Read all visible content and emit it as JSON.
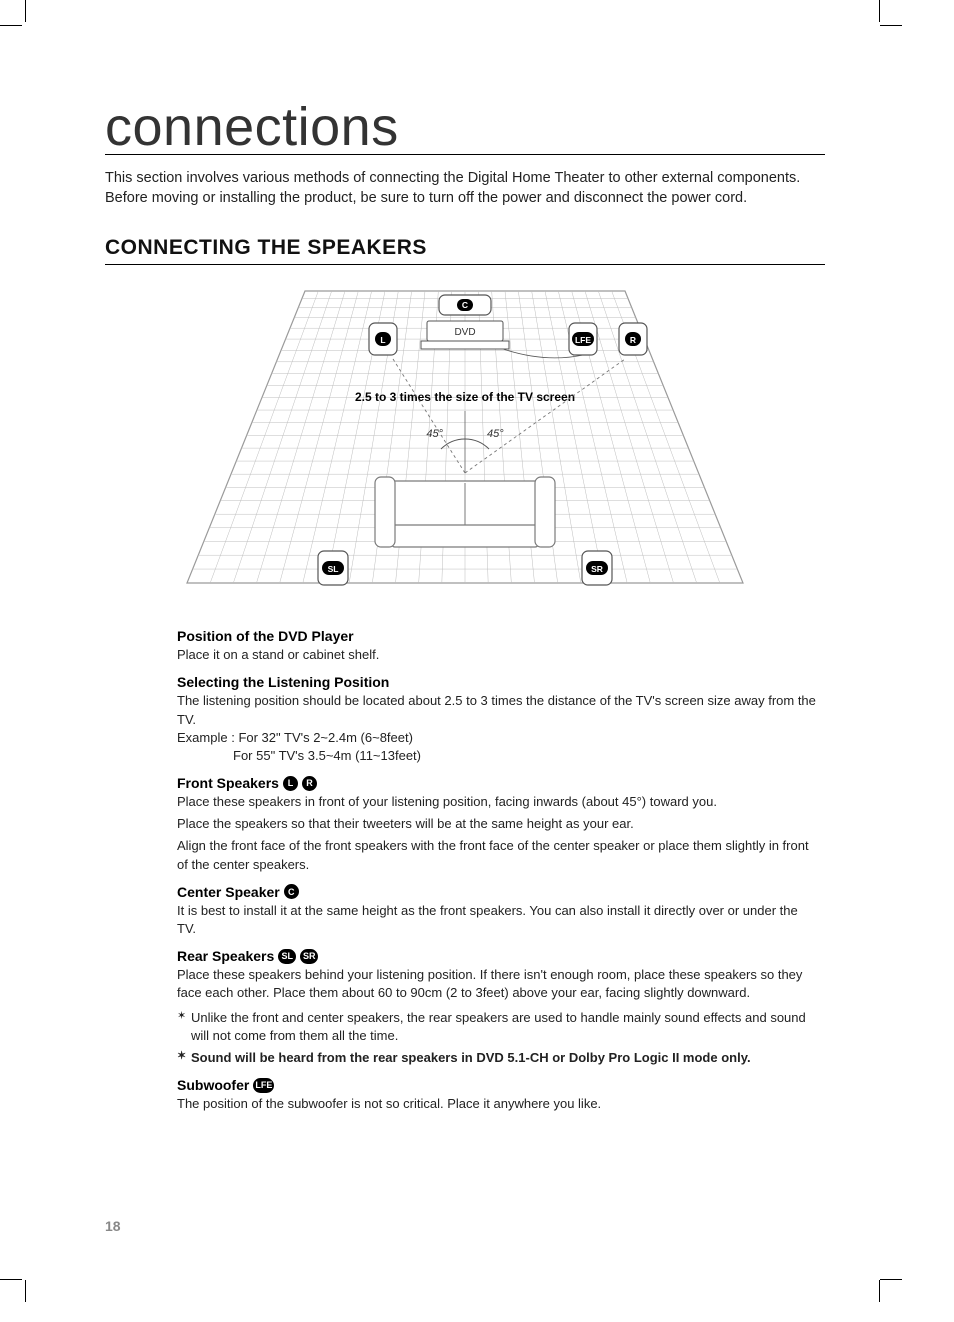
{
  "page": {
    "title": "connections",
    "intro": "This section involves various methods of connecting the Digital Home Theater to other external components.\nBefore moving or installing the product, be sure to turn off the power and disconnect the power cord.",
    "section_heading": "CONNECTING THE SPEAKERS",
    "page_number": "18"
  },
  "diagram": {
    "caption": "2.5 to 3 times the size of the TV screen",
    "dvd_label": "DVD",
    "angle_left": "45°",
    "angle_right": "45°",
    "speakers": {
      "center": "C",
      "front_left": "L",
      "front_right": "R",
      "lfe": "LFE",
      "surround_left": "SL",
      "surround_right": "SR"
    },
    "colors": {
      "floor_lines": "#bdbdbd",
      "floor_border": "#9a9a9a",
      "speaker_stroke": "#555555",
      "speaker_fill": "#ffffff",
      "pill_fill": "#000000",
      "pill_text": "#ffffff",
      "couch_stroke": "#7a7a7a",
      "couch_fill": "#ffffff",
      "caption_color": "#000000"
    }
  },
  "sections": {
    "dvd_position": {
      "heading": "Position of the DVD Player",
      "body": "Place it on a stand or cabinet shelf."
    },
    "listening": {
      "heading": "Selecting the Listening Position",
      "body": "The listening position should be located about 2.5 to 3 times the distance of the TV's screen size away from the TV.",
      "example_label": "Example :",
      "example_1": "For 32\" TV's 2~2.4m (6~8feet)",
      "example_2": "For 55\" TV's 3.5~4m (11~13feet)"
    },
    "front": {
      "heading": "Front Speakers",
      "icons": [
        "L",
        "R"
      ],
      "p1": "Place these speakers in front of your listening position, facing inwards (about 45°) toward you.",
      "p2": "Place the speakers so that their tweeters will be at the same height as your ear.",
      "p3": "Align the front face of the front speakers with the front face of the center speaker or place them slightly in front of the center speakers."
    },
    "center": {
      "heading": "Center Speaker",
      "icons": [
        "C"
      ],
      "body": "It is best to install it at the same height as the front speakers. You can also install it directly over or under the TV."
    },
    "rear": {
      "heading": "Rear Speakers",
      "icons": [
        "SL",
        "SR"
      ],
      "body": "Place these speakers behind your listening position. If there isn't enough room, place these speakers so they face each other. Place them about 60 to 90cm (2 to 3feet) above your ear, facing slightly downward.",
      "star1": "Unlike the front and center speakers, the rear speakers are used to handle mainly sound effects and sound will not come from them all the time.",
      "star2": "Sound will be heard from the rear speakers in DVD 5.1-CH or Dolby Pro Logic II mode only."
    },
    "sub": {
      "heading": "Subwoofer",
      "icons": [
        "LFE"
      ],
      "body": "The position of the subwoofer is not so critical. Place it anywhere you like."
    }
  }
}
